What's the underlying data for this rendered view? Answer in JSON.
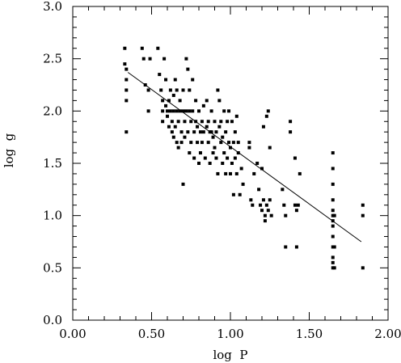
{
  "chart_data": {
    "type": "scatter",
    "title": "",
    "xlabel": "log  P",
    "ylabel": "log  g",
    "xlim": [
      0.0,
      2.0
    ],
    "ylim": [
      0.0,
      3.0
    ],
    "grid": false,
    "xticks": {
      "values": [
        0.0,
        0.5,
        1.0,
        1.5,
        2.0
      ],
      "labels": [
        "0.00",
        "0.50",
        "1.00",
        "1.50",
        "2.00"
      ]
    },
    "yticks": {
      "values": [
        0.0,
        0.5,
        1.0,
        1.5,
        2.0,
        2.5,
        3.0
      ],
      "labels": [
        "0.0",
        "0.5",
        "1.0",
        "1.5",
        "2.0",
        "2.5",
        "3.0"
      ]
    },
    "x_minor_step": 0.1,
    "y_minor_step": 0.1,
    "colors": {
      "points": "#000000",
      "fit_line": "#000000",
      "axes": "#000000"
    },
    "series": [
      {
        "points": [
          [
            0.33,
            2.6
          ],
          [
            0.33,
            2.45
          ],
          [
            0.34,
            2.4
          ],
          [
            0.34,
            2.3
          ],
          [
            0.34,
            2.2
          ],
          [
            0.34,
            2.1
          ],
          [
            0.34,
            1.8
          ],
          [
            0.44,
            2.6
          ],
          [
            0.45,
            2.5
          ],
          [
            0.46,
            2.25
          ],
          [
            0.48,
            2.2
          ],
          [
            0.48,
            2.0
          ],
          [
            0.49,
            2.5
          ],
          [
            0.54,
            2.6
          ],
          [
            0.55,
            2.35
          ],
          [
            0.56,
            2.2
          ],
          [
            0.57,
            2.1
          ],
          [
            0.57,
            2.0
          ],
          [
            0.57,
            1.9
          ],
          [
            0.58,
            2.5
          ],
          [
            0.59,
            2.3
          ],
          [
            0.59,
            2.05
          ],
          [
            0.6,
            2.0
          ],
          [
            0.6,
            1.95
          ],
          [
            0.61,
            2.1
          ],
          [
            0.61,
            1.85
          ],
          [
            0.62,
            2.2
          ],
          [
            0.62,
            2.0
          ],
          [
            0.63,
            1.9
          ],
          [
            0.63,
            1.8
          ],
          [
            0.64,
            2.15
          ],
          [
            0.64,
            2.0
          ],
          [
            0.64,
            1.75
          ],
          [
            0.65,
            2.3
          ],
          [
            0.65,
            1.85
          ],
          [
            0.66,
            2.2
          ],
          [
            0.66,
            2.0
          ],
          [
            0.66,
            1.7
          ],
          [
            0.67,
            1.9
          ],
          [
            0.67,
            1.65
          ],
          [
            0.68,
            2.1
          ],
          [
            0.68,
            2.0
          ],
          [
            0.69,
            1.8
          ],
          [
            0.69,
            1.7
          ],
          [
            0.7,
            2.2
          ],
          [
            0.7,
            2.0
          ],
          [
            0.7,
            1.3
          ],
          [
            0.71,
            1.9
          ],
          [
            0.71,
            1.75
          ],
          [
            0.72,
            2.5
          ],
          [
            0.72,
            2.0
          ],
          [
            0.73,
            2.4
          ],
          [
            0.73,
            1.8
          ],
          [
            0.74,
            2.2
          ],
          [
            0.74,
            2.0
          ],
          [
            0.74,
            1.6
          ],
          [
            0.75,
            1.9
          ],
          [
            0.75,
            1.7
          ],
          [
            0.76,
            2.3
          ],
          [
            0.76,
            2.0
          ],
          [
            0.77,
            1.8
          ],
          [
            0.77,
            1.55
          ],
          [
            0.78,
            2.1
          ],
          [
            0.78,
            1.9
          ],
          [
            0.79,
            1.85
          ],
          [
            0.79,
            1.7
          ],
          [
            0.8,
            2.0
          ],
          [
            0.8,
            1.5
          ],
          [
            0.81,
            1.8
          ],
          [
            0.81,
            1.6
          ],
          [
            0.82,
            1.9
          ],
          [
            0.82,
            1.7
          ],
          [
            0.83,
            2.05
          ],
          [
            0.83,
            1.8
          ],
          [
            0.84,
            1.55
          ],
          [
            0.85,
            2.1
          ],
          [
            0.85,
            1.85
          ],
          [
            0.86,
            1.9
          ],
          [
            0.86,
            1.7
          ],
          [
            0.87,
            1.8
          ],
          [
            0.87,
            1.5
          ],
          [
            0.88,
            2.0
          ],
          [
            0.88,
            1.8
          ],
          [
            0.89,
            1.75
          ],
          [
            0.89,
            1.6
          ],
          [
            0.9,
            1.9
          ],
          [
            0.9,
            1.65
          ],
          [
            0.91,
            1.8
          ],
          [
            0.91,
            1.55
          ],
          [
            0.92,
            2.2
          ],
          [
            0.92,
            1.4
          ],
          [
            0.93,
            2.1
          ],
          [
            0.93,
            1.85
          ],
          [
            0.94,
            1.9
          ],
          [
            0.94,
            1.7
          ],
          [
            0.95,
            1.75
          ],
          [
            0.95,
            1.5
          ],
          [
            0.96,
            2.0
          ],
          [
            0.96,
            1.6
          ],
          [
            0.97,
            1.8
          ],
          [
            0.97,
            1.4
          ],
          [
            0.98,
            1.9
          ],
          [
            0.98,
            1.55
          ],
          [
            0.99,
            2.0
          ],
          [
            0.99,
            1.7
          ],
          [
            1.0,
            1.65
          ],
          [
            1.0,
            1.4
          ],
          [
            1.01,
            1.9
          ],
          [
            1.01,
            1.5
          ],
          [
            1.02,
            1.7
          ],
          [
            1.02,
            1.2
          ],
          [
            1.03,
            1.8
          ],
          [
            1.03,
            1.55
          ],
          [
            1.04,
            1.95
          ],
          [
            1.04,
            1.4
          ],
          [
            1.05,
            1.7
          ],
          [
            1.05,
            1.6
          ],
          [
            1.06,
            1.2
          ],
          [
            1.07,
            1.45
          ],
          [
            1.08,
            1.3
          ],
          [
            1.12,
            1.7
          ],
          [
            1.12,
            1.65
          ],
          [
            1.13,
            1.15
          ],
          [
            1.14,
            1.1
          ],
          [
            1.15,
            1.4
          ],
          [
            1.17,
            1.5
          ],
          [
            1.18,
            1.25
          ],
          [
            1.19,
            1.1
          ],
          [
            1.2,
            1.45
          ],
          [
            1.2,
            1.05
          ],
          [
            1.21,
            1.85
          ],
          [
            1.21,
            1.15
          ],
          [
            1.22,
            1.0
          ],
          [
            1.22,
            0.95
          ],
          [
            1.23,
            1.95
          ],
          [
            1.23,
            1.1
          ],
          [
            1.24,
            2.0
          ],
          [
            1.24,
            1.05
          ],
          [
            1.25,
            1.65
          ],
          [
            1.25,
            1.15
          ],
          [
            1.26,
            1.0
          ],
          [
            1.33,
            1.25
          ],
          [
            1.34,
            1.1
          ],
          [
            1.35,
            0.7
          ],
          [
            1.35,
            1.0
          ],
          [
            1.38,
            1.9
          ],
          [
            1.38,
            1.8
          ],
          [
            1.41,
            1.55
          ],
          [
            1.41,
            1.1
          ],
          [
            1.42,
            0.7
          ],
          [
            1.42,
            1.05
          ],
          [
            1.43,
            1.1
          ],
          [
            1.44,
            1.4
          ],
          [
            1.65,
            1.6
          ],
          [
            1.65,
            1.45
          ],
          [
            1.65,
            1.3
          ],
          [
            1.65,
            1.15
          ],
          [
            1.65,
            1.05
          ],
          [
            1.65,
            1.0
          ],
          [
            1.65,
            0.95
          ],
          [
            1.65,
            0.9
          ],
          [
            1.65,
            0.8
          ],
          [
            1.65,
            0.7
          ],
          [
            1.65,
            0.6
          ],
          [
            1.65,
            0.55
          ],
          [
            1.65,
            0.5
          ],
          [
            1.66,
            1.0
          ],
          [
            1.66,
            0.7
          ],
          [
            1.66,
            0.5
          ],
          [
            1.84,
            1.1
          ],
          [
            1.84,
            1.0
          ],
          [
            1.84,
            0.5
          ]
        ]
      }
    ],
    "fit_line": {
      "x": [
        0.35,
        1.83
      ],
      "y": [
        2.37,
        0.75
      ]
    }
  }
}
